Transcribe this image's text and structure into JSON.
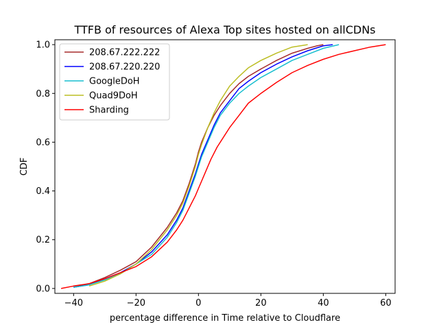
{
  "chart_data": {
    "type": "line",
    "title": "TTFB of resources of Alexa Top sites hosted on allCDNs",
    "xlabel": "percentage difference in Time relative to Cloudflare",
    "ylabel": "CDF",
    "xlim": [
      -46,
      63
    ],
    "ylim": [
      -0.02,
      1.02
    ],
    "xticks": [
      -40,
      -20,
      0,
      20,
      40,
      60
    ],
    "xtick_labels": [
      "−40",
      "−20",
      "0",
      "20",
      "40",
      "60"
    ],
    "yticks": [
      0.0,
      0.2,
      0.4,
      0.6,
      0.8,
      1.0
    ],
    "ytick_labels": [
      "0.0",
      "0.2",
      "0.4",
      "0.6",
      "0.8",
      "1.0"
    ],
    "grid": false,
    "legend_position": "top-left",
    "series": [
      {
        "name": "208.67.222.222",
        "color": "#a52a2a",
        "x": [
          -40,
          -35,
          -30,
          -25,
          -20,
          -15,
          -10,
          -7,
          -5,
          -3,
          -1,
          0,
          1,
          2,
          3,
          5,
          7,
          10,
          13,
          16,
          20,
          25,
          30,
          35,
          38,
          40
        ],
        "y": [
          0.005,
          0.02,
          0.045,
          0.075,
          0.11,
          0.17,
          0.25,
          0.31,
          0.36,
          0.43,
          0.51,
          0.56,
          0.6,
          0.63,
          0.66,
          0.71,
          0.75,
          0.8,
          0.84,
          0.87,
          0.9,
          0.935,
          0.965,
          0.985,
          0.995,
          1.0
        ]
      },
      {
        "name": "208.67.220.220",
        "color": "#0000ff",
        "x": [
          -40,
          -35,
          -30,
          -25,
          -20,
          -15,
          -10,
          -7,
          -5,
          -3,
          -1,
          0,
          1,
          3,
          5,
          7,
          10,
          13,
          16,
          20,
          25,
          30,
          35,
          40,
          43
        ],
        "y": [
          0.005,
          0.015,
          0.04,
          0.065,
          0.1,
          0.15,
          0.22,
          0.28,
          0.33,
          0.4,
          0.47,
          0.51,
          0.55,
          0.61,
          0.67,
          0.72,
          0.77,
          0.82,
          0.85,
          0.885,
          0.92,
          0.95,
          0.975,
          0.995,
          1.0
        ]
      },
      {
        "name": "GoogleDoH",
        "color": "#17becf",
        "x": [
          -40,
          -35,
          -30,
          -25,
          -20,
          -15,
          -10,
          -7,
          -5,
          -3,
          -1,
          0,
          1,
          3,
          5,
          7,
          10,
          13,
          16,
          20,
          25,
          30,
          35,
          40,
          45
        ],
        "y": [
          0.005,
          0.015,
          0.035,
          0.06,
          0.1,
          0.14,
          0.21,
          0.27,
          0.32,
          0.39,
          0.46,
          0.5,
          0.54,
          0.6,
          0.66,
          0.71,
          0.76,
          0.8,
          0.83,
          0.865,
          0.9,
          0.935,
          0.96,
          0.985,
          1.0
        ]
      },
      {
        "name": "Quad9DoH",
        "color": "#bcbd22",
        "x": [
          -35,
          -30,
          -25,
          -20,
          -15,
          -10,
          -7,
          -5,
          -3,
          -1,
          0,
          1,
          3,
          5,
          7,
          10,
          13,
          16,
          20,
          25,
          30,
          35
        ],
        "y": [
          0.01,
          0.03,
          0.06,
          0.1,
          0.16,
          0.24,
          0.3,
          0.35,
          0.42,
          0.5,
          0.55,
          0.59,
          0.66,
          0.72,
          0.77,
          0.83,
          0.87,
          0.905,
          0.935,
          0.965,
          0.99,
          1.0
        ]
      },
      {
        "name": "Sharding",
        "color": "#ff0000",
        "x": [
          -44,
          -40,
          -35,
          -30,
          -25,
          -20,
          -15,
          -10,
          -7,
          -5,
          -3,
          -1,
          0,
          2,
          4,
          6,
          8,
          10,
          13,
          16,
          20,
          25,
          30,
          35,
          40,
          45,
          50,
          55,
          60
        ],
        "y": [
          0.0,
          0.01,
          0.02,
          0.04,
          0.065,
          0.09,
          0.13,
          0.19,
          0.24,
          0.28,
          0.33,
          0.38,
          0.41,
          0.47,
          0.53,
          0.58,
          0.62,
          0.66,
          0.71,
          0.76,
          0.8,
          0.845,
          0.885,
          0.915,
          0.94,
          0.96,
          0.975,
          0.99,
          1.0
        ]
      }
    ]
  }
}
